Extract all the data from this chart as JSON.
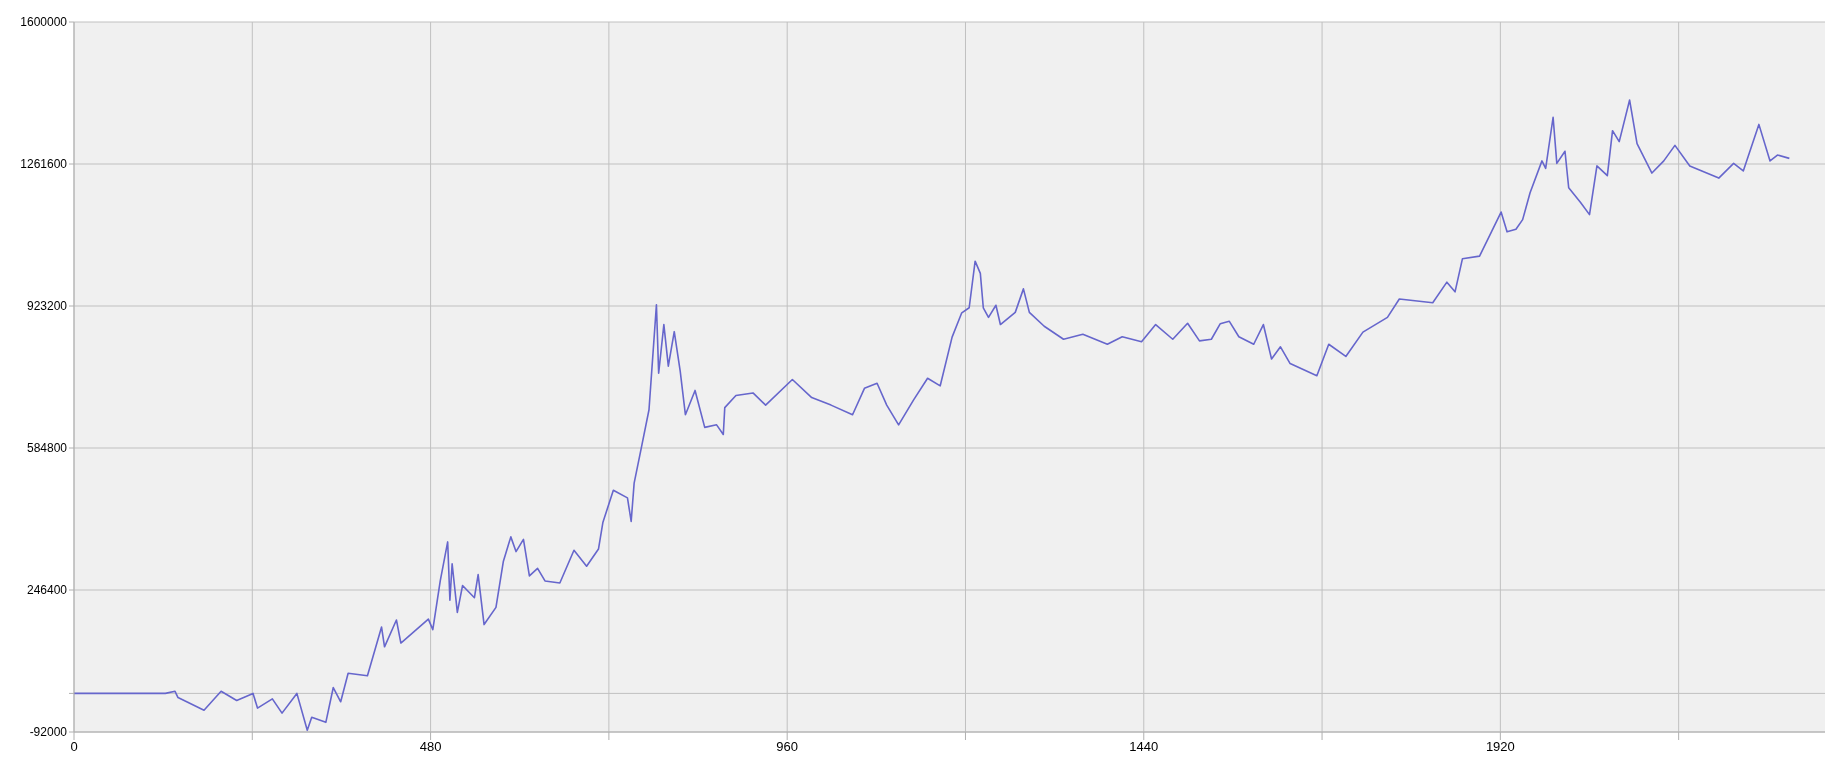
{
  "chart_data": {
    "type": "line",
    "x": [
      0,
      123,
      136,
      140,
      175,
      198,
      219,
      241,
      247,
      267,
      280,
      300,
      314,
      320,
      339,
      349,
      359,
      369,
      395,
      414,
      418,
      434,
      440,
      477,
      483,
      493,
      503,
      506,
      509,
      516,
      523,
      539,
      544,
      552,
      568,
      578,
      588,
      595,
      605,
      613,
      624,
      634,
      654,
      673,
      690,
      706,
      712,
      726,
      745,
      750,
      754,
      764,
      774,
      784,
      787,
      794,
      800,
      808,
      816,
      823,
      836,
      849,
      865,
      874,
      876,
      891,
      914,
      931,
      967,
      993,
      1019,
      1048,
      1064,
      1081,
      1094,
      1110,
      1130,
      1149,
      1166,
      1182,
      1195,
      1205,
      1213,
      1220,
      1224,
      1231,
      1241,
      1247,
      1267,
      1278,
      1286,
      1306,
      1332,
      1358,
      1391,
      1411,
      1437,
      1456,
      1479,
      1499,
      1515,
      1531,
      1543,
      1555,
      1568,
      1588,
      1601,
      1612,
      1624,
      1637,
      1673,
      1689,
      1712,
      1735,
      1768,
      1784,
      1829,
      1848,
      1859,
      1869,
      1892,
      1908,
      1921,
      1929,
      1941,
      1950,
      1960,
      1976,
      1981,
      1991,
      1996,
      2007,
      2012,
      2028,
      2040,
      2050,
      2064,
      2071,
      2080,
      2094,
      2104,
      2124,
      2140,
      2155,
      2175,
      2214,
      2234,
      2247,
      2268,
      2283,
      2293,
      2309
    ],
    "series": [
      {
        "color": "#6666cc",
        "values": [
          0,
          0,
          5000,
          -10000,
          -40000,
          5000,
          -17000,
          0,
          -35000,
          -13000,
          -47000,
          0,
          -88000,
          -57000,
          -69000,
          14000,
          -20000,
          48000,
          42000,
          158000,
          111000,
          175000,
          120000,
          177000,
          152000,
          268000,
          361000,
          222000,
          309000,
          193000,
          257000,
          228000,
          283000,
          164000,
          205000,
          315000,
          373000,
          338000,
          367000,
          280000,
          298000,
          268000,
          263000,
          341000,
          303000,
          344000,
          408000,
          484000,
          466000,
          410000,
          501000,
          588000,
          676000,
          926000,
          763000,
          879000,
          780000,
          862000,
          768000,
          664000,
          722000,
          634000,
          640000,
          617000,
          681000,
          710000,
          716000,
          687000,
          748000,
          705000,
          687000,
          664000,
          727000,
          739000,
          687000,
          640000,
          699000,
          751000,
          733000,
          849000,
          907000,
          919000,
          1030000,
          1001000,
          919000,
          896000,
          925000,
          879000,
          908000,
          964000,
          908000,
          875000,
          844000,
          856000,
          832000,
          850000,
          838000,
          879000,
          844000,
          882000,
          840000,
          844000,
          881000,
          887000,
          850000,
          832000,
          879000,
          797000,
          826000,
          786000,
          757000,
          832000,
          803000,
          861000,
          896000,
          940000,
          931000,
          980000,
          957000,
          1036000,
          1042000,
          1100000,
          1147000,
          1100000,
          1106000,
          1129000,
          1193000,
          1269000,
          1251000,
          1373000,
          1263000,
          1292000,
          1205000,
          1170000,
          1141000,
          1257000,
          1234000,
          1341000,
          1315000,
          1414000,
          1310000,
          1240000,
          1269000,
          1306000,
          1257000,
          1228000,
          1263000,
          1245000,
          1356000,
          1269000,
          1283000,
          1275000
        ]
      }
    ],
    "xlim": [
      0,
      2357
    ],
    "xticks": [
      0,
      {
        "value": 240,
        "label": null
      },
      480,
      {
        "value": 720,
        "label": null
      },
      960,
      {
        "value": 1200,
        "label": null
      },
      1440,
      {
        "value": 1680,
        "label": null
      },
      1920,
      {
        "value": 2160,
        "label": null
      }
    ],
    "ylim": [
      -92000,
      1600000
    ],
    "yticks": [
      -92000,
      {
        "value": 0,
        "label": null
      },
      246400,
      584800,
      923200,
      1261600,
      1600000
    ],
    "grid": true,
    "marker": "none",
    "line_style": "solid"
  }
}
